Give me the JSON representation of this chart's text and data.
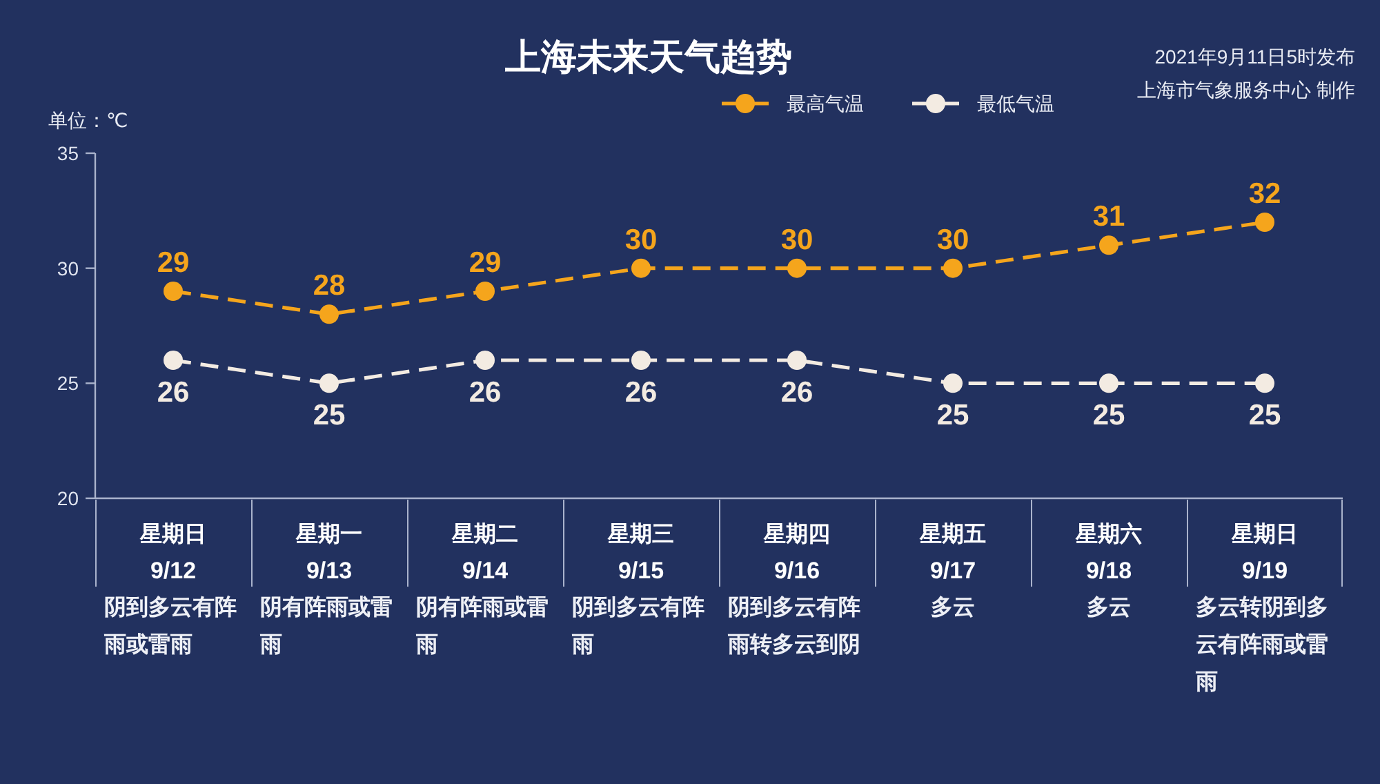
{
  "chart_data": {
    "type": "line",
    "title": "上海未来天气趋势",
    "ylabel": "单位：℃",
    "categories": [
      "星期日\n9/12\n阴到多云有阵雨或雷雨",
      "星期一\n9/13\n阴有阵雨或雷雨",
      "星期二\n9/14\n阴有阵雨或雷雨",
      "星期三\n9/15\n阴到多云有阵雨",
      "星期四\n9/16\n阴到多云有阵雨转多云到阴",
      "星期五\n9/17\n多云",
      "星期六\n9/18\n多云",
      "星期日\n9/19\n多云转阴到多云有阵雨或雷雨"
    ],
    "series": [
      {
        "name": "最高气温",
        "color": "#f5a51c",
        "values": [
          29,
          28,
          29,
          30,
          30,
          30,
          31,
          32
        ]
      },
      {
        "name": "最低气温",
        "color": "#f3ebe2",
        "values": [
          26,
          25,
          26,
          26,
          26,
          25,
          25,
          25
        ]
      }
    ],
    "ylim": [
      20,
      35
    ],
    "yticks": [
      20,
      25,
      30,
      35
    ],
    "data_labels": true,
    "legend": "top",
    "marker": "circle",
    "line_style": "dashed",
    "annotations": [
      "2021年9月11日5时发布",
      "上海市气象服务中心 制作"
    ]
  }
}
